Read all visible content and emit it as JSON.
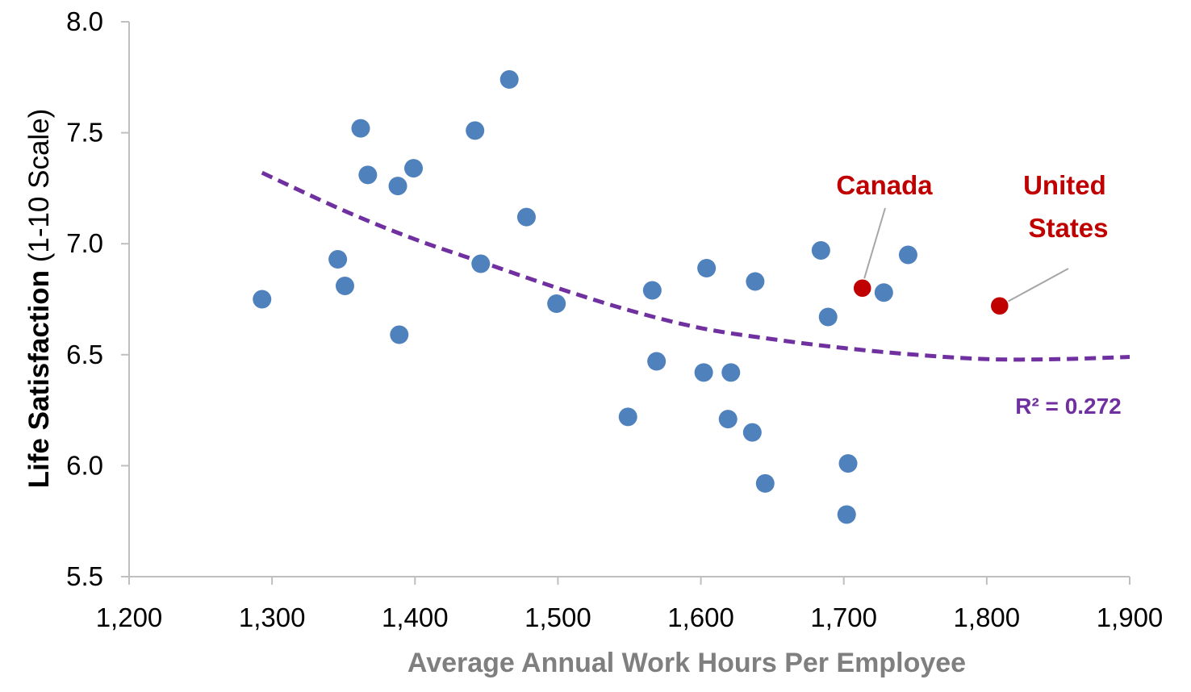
{
  "chart_data": {
    "type": "scatter",
    "xlabel": "Average Annual Work Hours Per Employee",
    "ylabel_bold": "Life Satisfaction",
    "ylabel_rest": " (1-10 Scale)",
    "xlim": [
      1200,
      1900
    ],
    "ylim": [
      5.5,
      8.0
    ],
    "x_ticks": [
      1200,
      1300,
      1400,
      1500,
      1600,
      1700,
      1800,
      1900
    ],
    "x_tick_labels": [
      "1,200",
      "1,300",
      "1,400",
      "1,500",
      "1,600",
      "1,700",
      "1,800",
      "1,900"
    ],
    "y_ticks": [
      5.5,
      6.0,
      6.5,
      7.0,
      7.5,
      8.0
    ],
    "y_tick_labels": [
      "5.5",
      "6.0",
      "6.5",
      "7.0",
      "7.5",
      "8.0"
    ],
    "grid": false,
    "point_color": "#4f81bd",
    "highlight_color": "#c00000",
    "trend_color": "#7030a0",
    "points": [
      {
        "x": 1293,
        "y": 6.75
      },
      {
        "x": 1346,
        "y": 6.93
      },
      {
        "x": 1351,
        "y": 6.81
      },
      {
        "x": 1362,
        "y": 7.52
      },
      {
        "x": 1367,
        "y": 7.31
      },
      {
        "x": 1388,
        "y": 7.26
      },
      {
        "x": 1389,
        "y": 6.59
      },
      {
        "x": 1399,
        "y": 7.34
      },
      {
        "x": 1442,
        "y": 7.51
      },
      {
        "x": 1446,
        "y": 6.91
      },
      {
        "x": 1466,
        "y": 7.74
      },
      {
        "x": 1478,
        "y": 7.12
      },
      {
        "x": 1499,
        "y": 6.73
      },
      {
        "x": 1549,
        "y": 6.22
      },
      {
        "x": 1566,
        "y": 6.79
      },
      {
        "x": 1569,
        "y": 6.47
      },
      {
        "x": 1602,
        "y": 6.42
      },
      {
        "x": 1604,
        "y": 6.89
      },
      {
        "x": 1619,
        "y": 6.21
      },
      {
        "x": 1621,
        "y": 6.42
      },
      {
        "x": 1636,
        "y": 6.15
      },
      {
        "x": 1638,
        "y": 6.83
      },
      {
        "x": 1645,
        "y": 5.92
      },
      {
        "x": 1684,
        "y": 6.97
      },
      {
        "x": 1689,
        "y": 6.67
      },
      {
        "x": 1702,
        "y": 5.78
      },
      {
        "x": 1703,
        "y": 6.01
      },
      {
        "x": 1728,
        "y": 6.78
      },
      {
        "x": 1745,
        "y": 6.95
      }
    ],
    "highlighted_points": [
      {
        "label": "Canada",
        "x": 1713,
        "y": 6.8
      },
      {
        "label": "United States",
        "x": 1809,
        "y": 6.72
      }
    ],
    "trendline": {
      "type": "polynomial",
      "style": "dashed",
      "x": [
        1293,
        1350,
        1400,
        1450,
        1500,
        1550,
        1600,
        1650,
        1700,
        1750,
        1800,
        1850,
        1900
      ],
      "y": [
        7.32,
        7.15,
        7.02,
        6.91,
        6.8,
        6.7,
        6.62,
        6.57,
        6.53,
        6.5,
        6.48,
        6.48,
        6.49
      ],
      "r2_label": "R² = 0.272"
    }
  }
}
